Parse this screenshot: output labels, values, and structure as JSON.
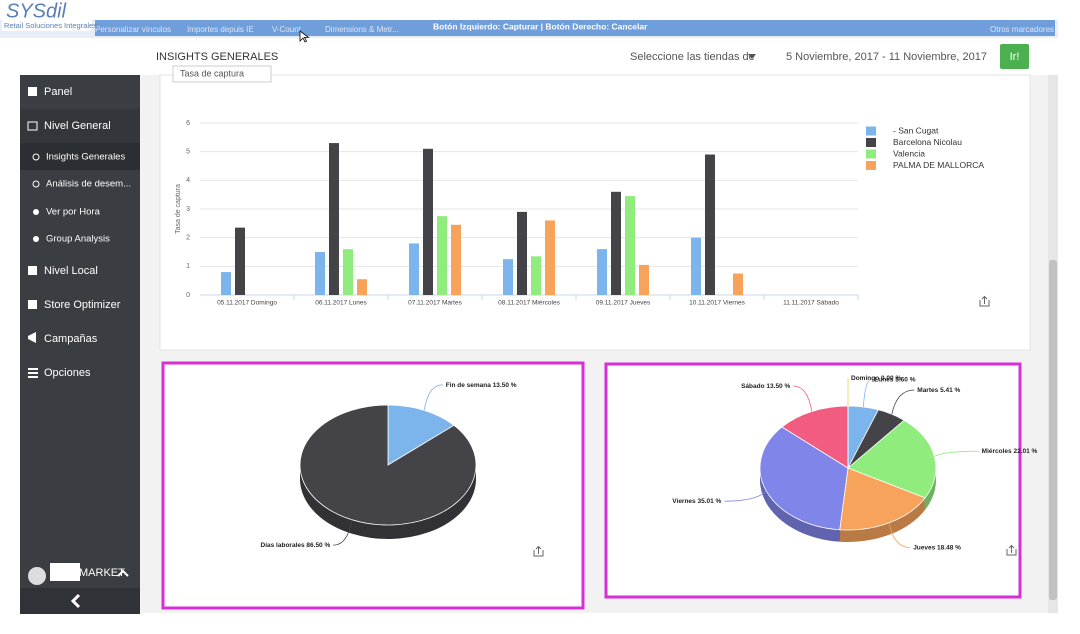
{
  "browser_bar": {
    "bookmarks": [
      "Personalizar vínculos",
      "Importes depuis IE",
      "V-Count",
      "Dimensions & Metr..."
    ],
    "capture_hint": "Botón Izquierdo: Capturar | Botón Derecho: Cancelar",
    "other_bookmarks": "Otros marcadores"
  },
  "logo": {
    "name": "SYSdil",
    "tagline": "Retail Soluciones Integrales"
  },
  "header": {
    "title": "INSIGHTS GENERALES",
    "store_select": "Seleccione las tiendas de",
    "date_range": "5 Noviembre, 2017 - 11 Noviembre, 2017",
    "button": "Ir!"
  },
  "sidebar": {
    "items": [
      "Panel",
      "Nivel General",
      "Insights Generales",
      "Análisis de desem...",
      "Ver por Hora",
      "Group Analysis",
      "Nivel Local",
      "Store Optimizer",
      "Campañas",
      "Opciones"
    ],
    "user": "MARKET"
  },
  "metric_select": "Tasa de captura",
  "chart_data": [
    {
      "type": "bar",
      "y_label": "Tasa de captura",
      "categories": [
        "05.11.2017 Domingo",
        "06.11.2017 Lunes",
        "07.11.2017 Martes",
        "08.11.2017 Miércoles",
        "09.11.2017 Jueves",
        "10.11.2017 Viernes",
        "11.11.2017 Sábado"
      ],
      "series": [
        {
          "name": "- San Cugat",
          "color": "#7cb5ec",
          "values": [
            0.8,
            1.5,
            1.8,
            1.25,
            1.6,
            2.0,
            null
          ]
        },
        {
          "name": "Barcelona Nicolau",
          "color": "#434348",
          "values": [
            2.35,
            5.3,
            5.1,
            2.9,
            3.6,
            4.9,
            null
          ]
        },
        {
          "name": "Valencia",
          "color": "#90ed7d",
          "values": [
            null,
            1.6,
            2.75,
            1.35,
            3.45,
            null,
            null
          ]
        },
        {
          "name": "PALMA DE MALLORCA",
          "color": "#f7a35c",
          "values": [
            null,
            0.55,
            2.45,
            2.6,
            1.05,
            0.75,
            null
          ]
        }
      ],
      "ylim": [
        0,
        6
      ],
      "yticks": [
        0,
        1,
        2,
        3,
        4,
        5,
        6
      ],
      "grid": true
    },
    {
      "type": "pie",
      "categories": [
        "Fin de semana",
        "Dias laborales"
      ],
      "values": [
        13.5,
        86.5
      ],
      "value_labels": [
        "13.50 %",
        "86.50 %"
      ],
      "colors": [
        "#7cb5ec",
        "#434348"
      ]
    },
    {
      "type": "pie",
      "categories": [
        "Lunes",
        "Martes",
        "Miércoles",
        "Jueves",
        "Viernes",
        "Sábado",
        "Domingo"
      ],
      "values": [
        5.6,
        5.41,
        22.01,
        18.48,
        35.01,
        13.5,
        0
      ],
      "value_labels": [
        "5.60 %",
        "5.41 %",
        "22.01 %",
        "18.48 %",
        "35.01 %",
        "13.50 %",
        "0.00 %"
      ],
      "colors": [
        "#7cb5ec",
        "#434348",
        "#90ed7d",
        "#f7a35c",
        "#8085e9",
        "#f15c80",
        "#e4d354"
      ]
    }
  ]
}
